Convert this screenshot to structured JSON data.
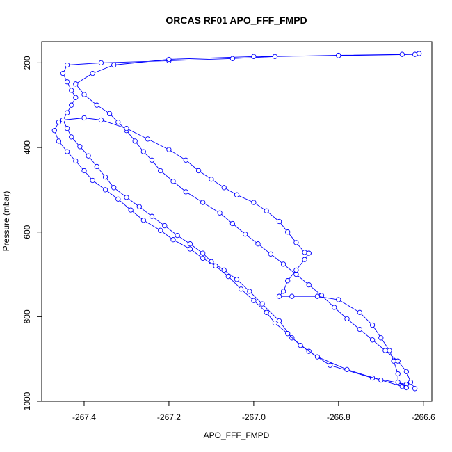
{
  "chart_data": {
    "type": "line",
    "title": "ORCAS RF01 APO_FFF_FMPD",
    "xlabel": "APO_FFF_FMPD",
    "ylabel": "Pressure (mbar)",
    "xlim": [
      -267.5,
      -266.58
    ],
    "ylim": [
      1000,
      150
    ],
    "y_inverted": true,
    "x_ticks": [
      -267.4,
      -267.2,
      -267.0,
      -266.8,
      -266.6
    ],
    "x_tick_labels": [
      "-267.4",
      "-267.2",
      "-267.0",
      "-266.8",
      "-266.6"
    ],
    "y_ticks": [
      200,
      400,
      600,
      800,
      1000
    ],
    "y_tick_labels": [
      "200",
      "400",
      "600",
      "800",
      "1000"
    ],
    "grid": false,
    "legend": "none",
    "series": [
      {
        "marker": "open-circle",
        "points": [
          [
            -266.64,
            960
          ],
          [
            -266.72,
            945
          ],
          [
            -266.82,
            915
          ],
          [
            -266.87,
            882
          ],
          [
            -266.91,
            850
          ],
          [
            -266.94,
            810
          ],
          [
            -266.98,
            770
          ],
          [
            -267.01,
            740
          ],
          [
            -267.04,
            712
          ],
          [
            -267.07,
            690
          ],
          [
            -267.1,
            670
          ],
          [
            -267.12,
            650
          ],
          [
            -267.15,
            628
          ],
          [
            -267.18,
            608
          ],
          [
            -267.21,
            585
          ],
          [
            -267.24,
            563
          ],
          [
            -267.27,
            540
          ],
          [
            -267.3,
            518
          ],
          [
            -267.33,
            495
          ],
          [
            -267.35,
            470
          ],
          [
            -267.37,
            445
          ],
          [
            -267.39,
            420
          ],
          [
            -267.41,
            398
          ],
          [
            -267.43,
            375
          ],
          [
            -267.44,
            355
          ],
          [
            -267.45,
            335
          ],
          [
            -267.44,
            318
          ],
          [
            -267.43,
            300
          ],
          [
            -267.42,
            282
          ],
          [
            -267.43,
            265
          ],
          [
            -267.44,
            245
          ],
          [
            -267.45,
            225
          ],
          [
            -267.44,
            205
          ],
          [
            -267.36,
            200
          ],
          [
            -267.2,
            195
          ],
          [
            -267.05,
            190
          ],
          [
            -266.95,
            185
          ],
          [
            -266.8,
            182
          ],
          [
            -266.65,
            180
          ],
          [
            -266.61,
            178
          ],
          [
            -266.62,
            180
          ],
          [
            -266.8,
            183
          ],
          [
            -267.0,
            185
          ],
          [
            -267.2,
            192
          ],
          [
            -267.33,
            205
          ],
          [
            -267.38,
            225
          ],
          [
            -267.42,
            250
          ],
          [
            -267.4,
            275
          ],
          [
            -267.37,
            300
          ],
          [
            -267.34,
            320
          ],
          [
            -267.32,
            340
          ],
          [
            -267.3,
            360
          ],
          [
            -267.28,
            385
          ],
          [
            -267.26,
            410
          ],
          [
            -267.24,
            430
          ],
          [
            -267.22,
            455
          ],
          [
            -267.19,
            480
          ],
          [
            -267.16,
            505
          ],
          [
            -267.12,
            530
          ],
          [
            -267.08,
            555
          ],
          [
            -267.05,
            580
          ],
          [
            -267.02,
            605
          ],
          [
            -266.99,
            628
          ],
          [
            -266.96,
            652
          ],
          [
            -266.93,
            676
          ],
          [
            -266.9,
            700
          ],
          [
            -266.87,
            725
          ],
          [
            -266.84,
            750
          ],
          [
            -266.81,
            778
          ],
          [
            -266.78,
            805
          ],
          [
            -266.75,
            830
          ],
          [
            -266.72,
            855
          ],
          [
            -266.69,
            880
          ],
          [
            -266.66,
            905
          ],
          [
            -266.64,
            930
          ],
          [
            -266.63,
            955
          ],
          [
            -266.62,
            970
          ]
        ]
      },
      {
        "marker": "open-circle",
        "points": [
          [
            -266.65,
            965
          ],
          [
            -266.7,
            950
          ],
          [
            -266.78,
            925
          ],
          [
            -266.85,
            895
          ],
          [
            -266.89,
            868
          ],
          [
            -266.92,
            840
          ],
          [
            -266.95,
            815
          ],
          [
            -266.97,
            790
          ],
          [
            -267.0,
            762
          ],
          [
            -267.03,
            735
          ],
          [
            -267.06,
            705
          ],
          [
            -267.09,
            680
          ],
          [
            -267.12,
            662
          ],
          [
            -267.15,
            640
          ],
          [
            -267.19,
            618
          ],
          [
            -267.22,
            596
          ],
          [
            -267.26,
            572
          ],
          [
            -267.29,
            548
          ],
          [
            -267.32,
            522
          ],
          [
            -267.35,
            500
          ],
          [
            -267.38,
            478
          ],
          [
            -267.4,
            455
          ],
          [
            -267.42,
            432
          ],
          [
            -267.44,
            410
          ],
          [
            -267.46,
            385
          ],
          [
            -267.47,
            360
          ],
          [
            -267.46,
            340
          ]
        ]
      },
      {
        "marker": "open-circle",
        "points": [
          [
            -267.45,
            335
          ],
          [
            -267.4,
            330
          ],
          [
            -267.36,
            335
          ],
          [
            -267.3,
            355
          ],
          [
            -267.25,
            380
          ],
          [
            -267.2,
            405
          ],
          [
            -267.16,
            430
          ],
          [
            -267.13,
            455
          ],
          [
            -267.1,
            475
          ],
          [
            -267.07,
            495
          ],
          [
            -267.04,
            512
          ],
          [
            -267.0,
            530
          ],
          [
            -266.97,
            550
          ],
          [
            -266.94,
            575
          ],
          [
            -266.92,
            600
          ],
          [
            -266.9,
            625
          ],
          [
            -266.88,
            648
          ],
          [
            -266.87,
            650
          ]
        ]
      },
      {
        "marker": "open-circle",
        "points": [
          [
            -266.87,
            650
          ],
          [
            -266.88,
            665
          ],
          [
            -266.9,
            690
          ],
          [
            -266.92,
            715
          ],
          [
            -266.93,
            740
          ],
          [
            -266.94,
            752
          ],
          [
            -266.91,
            752
          ],
          [
            -266.85,
            752
          ],
          [
            -266.8,
            760
          ],
          [
            -266.75,
            790
          ],
          [
            -266.72,
            820
          ],
          [
            -266.7,
            850
          ],
          [
            -266.68,
            880
          ],
          [
            -266.67,
            905
          ],
          [
            -266.66,
            935
          ],
          [
            -266.66,
            955
          ],
          [
            -266.64,
            968
          ]
        ]
      }
    ]
  }
}
